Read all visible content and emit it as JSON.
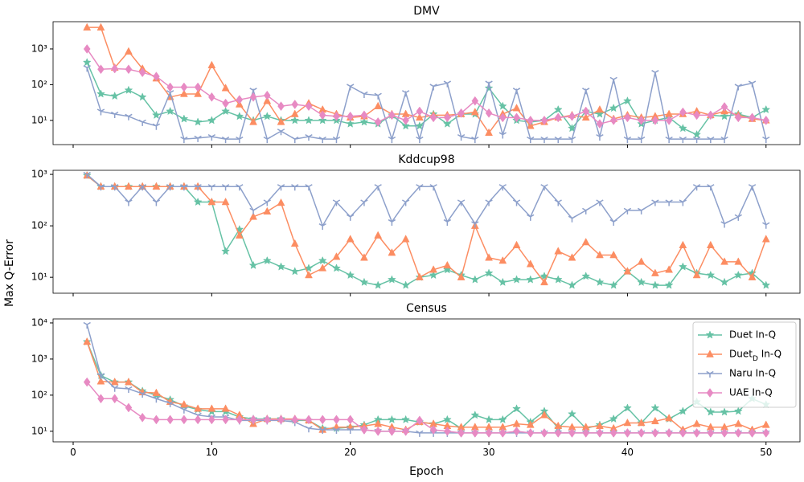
{
  "ylabel": "Max Q-Error",
  "chart_data": [
    {
      "type": "line",
      "title": "DMV",
      "log_y": true,
      "x": [
        1,
        2,
        3,
        4,
        5,
        6,
        7,
        8,
        9,
        10,
        11,
        12,
        13,
        14,
        15,
        16,
        17,
        18,
        19,
        20,
        21,
        22,
        23,
        24,
        25,
        26,
        27,
        28,
        29,
        30,
        31,
        32,
        33,
        34,
        35,
        36,
        37,
        38,
        39,
        40,
        41,
        42,
        43,
        44,
        45,
        46,
        47,
        48,
        49,
        50
      ],
      "xlim": [
        -1.45,
        52.45
      ],
      "xticks": [
        0,
        10,
        20,
        30,
        40,
        50
      ],
      "ylim": [
        2.1,
        5800
      ],
      "yticks": [
        {
          "value": 10,
          "label": "10¹"
        },
        {
          "value": 100,
          "label": "10²"
        },
        {
          "value": 1000,
          "label": "10³"
        }
      ],
      "series": [
        {
          "name": "Duet In-Q",
          "color": "#66c2a5",
          "marker": "star",
          "values": [
            420,
            55,
            48,
            70,
            45,
            14,
            18,
            11,
            9,
            10,
            18,
            13,
            10,
            13,
            10,
            10,
            10,
            10,
            10,
            8,
            9,
            8,
            14,
            7,
            7,
            15,
            8,
            15,
            15,
            80,
            25,
            10,
            9,
            10,
            20,
            6,
            18,
            15,
            22,
            35,
            8,
            10,
            12,
            6,
            4,
            14,
            13,
            15,
            12,
            20
          ]
        },
        {
          "name": "Duet_D In-Q",
          "color": "#fc8d62",
          "marker": "triangle",
          "values": [
            4000,
            4000,
            300,
            850,
            280,
            150,
            45,
            55,
            55,
            350,
            80,
            28,
            9,
            35,
            9,
            15,
            30,
            20,
            15,
            12,
            13,
            25,
            15,
            15,
            12,
            14,
            14,
            15,
            17,
            4.5,
            15,
            22,
            7,
            9,
            12,
            14,
            12,
            20,
            11,
            14,
            12,
            13,
            15,
            15,
            18,
            14,
            18,
            14,
            11,
            10
          ]
        },
        {
          "name": "Naru In-Q",
          "color": "#8da0cb",
          "marker": "tri",
          "values": [
            300,
            18,
            15,
            13,
            9,
            7,
            60,
            3,
            3.2,
            3.5,
            3,
            3,
            70,
            3,
            5,
            3,
            3.5,
            3,
            3,
            90,
            55,
            50,
            3,
            60,
            3,
            90,
            110,
            3.5,
            3,
            110,
            4,
            70,
            3,
            3,
            3,
            3,
            70,
            3.5,
            140,
            3,
            3,
            220,
            3,
            3,
            3,
            3,
            3,
            90,
            110,
            3
          ]
        },
        {
          "name": "UAE In-Q",
          "color": "#e78ac3",
          "marker": "diamond",
          "values": [
            1000,
            270,
            280,
            270,
            220,
            170,
            85,
            85,
            85,
            45,
            30,
            38,
            45,
            50,
            25,
            28,
            25,
            14,
            13,
            13,
            14,
            9,
            14,
            10,
            18,
            12,
            12,
            16,
            35,
            16,
            12,
            12,
            10,
            10,
            12,
            13,
            18,
            8,
            10,
            12,
            10,
            10,
            10,
            17,
            14,
            14,
            24,
            12,
            12,
            10
          ]
        }
      ]
    },
    {
      "type": "line",
      "title": "Kddcup98",
      "log_y": true,
      "x": [
        1,
        2,
        3,
        4,
        5,
        6,
        7,
        8,
        9,
        10,
        11,
        12,
        13,
        14,
        15,
        16,
        17,
        18,
        19,
        20,
        21,
        22,
        23,
        24,
        25,
        26,
        27,
        28,
        29,
        30,
        31,
        32,
        33,
        34,
        35,
        36,
        37,
        38,
        39,
        40,
        41,
        42,
        43,
        44,
        45,
        46,
        47,
        48,
        49,
        50
      ],
      "xlim": [
        -1.45,
        52.45
      ],
      "xticks": [
        0,
        10,
        20,
        30,
        40,
        50
      ],
      "ylim": [
        4.9,
        1200
      ],
      "yticks": [
        {
          "value": 10,
          "label": "10¹"
        },
        {
          "value": 100,
          "label": "10²"
        },
        {
          "value": 1000,
          "label": "10³"
        }
      ],
      "series": [
        {
          "name": "Duet In-Q",
          "color": "#66c2a5",
          "marker": "star",
          "values": [
            950,
            580,
            580,
            580,
            580,
            580,
            580,
            580,
            290,
            290,
            32,
            85,
            17,
            21,
            16,
            13,
            15,
            21,
            15,
            11,
            8,
            7,
            9,
            7,
            10,
            11,
            14,
            11,
            9,
            12,
            8,
            9,
            9,
            10.5,
            9,
            7,
            10.5,
            8,
            7,
            13,
            8,
            7,
            7,
            16,
            12,
            11,
            8,
            11,
            12,
            7
          ]
        },
        {
          "name": "Duet_D In-Q",
          "color": "#fc8d62",
          "marker": "triangle",
          "values": [
            950,
            580,
            580,
            580,
            580,
            580,
            580,
            580,
            580,
            290,
            290,
            65,
            150,
            190,
            280,
            45,
            11,
            15,
            25,
            55,
            24,
            65,
            30,
            55,
            10,
            14,
            17,
            10,
            100,
            24,
            21,
            42,
            18,
            8,
            32,
            24,
            48,
            27,
            27,
            13,
            20,
            12,
            14,
            42,
            11,
            42,
            20,
            20,
            10,
            55
          ]
        },
        {
          "name": "Naru In-Q",
          "color": "#8da0cb",
          "marker": "tri",
          "values": [
            1000,
            580,
            580,
            290,
            580,
            290,
            580,
            580,
            580,
            580,
            580,
            580,
            200,
            290,
            580,
            580,
            580,
            100,
            290,
            150,
            290,
            580,
            120,
            290,
            580,
            580,
            120,
            290,
            110,
            290,
            580,
            290,
            150,
            580,
            290,
            140,
            200,
            290,
            120,
            200,
            200,
            290,
            290,
            290,
            580,
            580,
            110,
            150,
            580,
            105
          ]
        }
      ]
    },
    {
      "type": "line",
      "title": "Census",
      "log_y": true,
      "xlabel": "Epoch",
      "legend": "upper right",
      "x": [
        1,
        2,
        3,
        4,
        5,
        6,
        7,
        8,
        9,
        10,
        11,
        12,
        13,
        14,
        15,
        16,
        17,
        18,
        19,
        20,
        21,
        22,
        23,
        24,
        25,
        26,
        27,
        28,
        29,
        30,
        31,
        32,
        33,
        34,
        35,
        36,
        37,
        38,
        39,
        40,
        41,
        42,
        43,
        44,
        45,
        46,
        47,
        48,
        49,
        50
      ],
      "xlim": [
        -1.45,
        52.45
      ],
      "xticks": [
        0,
        10,
        20,
        30,
        40,
        50
      ],
      "ylim": [
        5.1,
        12900
      ],
      "yticks": [
        {
          "value": 10,
          "label": "10¹"
        },
        {
          "value": 100,
          "label": "10²"
        },
        {
          "value": 1000,
          "label": "10³"
        },
        {
          "value": 10000,
          "label": "10⁴"
        }
      ],
      "series": [
        {
          "name": "Duet In-Q",
          "color": "#66c2a5",
          "marker": "star",
          "values": [
            3000,
            350,
            230,
            230,
            130,
            100,
            75,
            50,
            40,
            35,
            35,
            25,
            22,
            22,
            22,
            20,
            20,
            12,
            12,
            13,
            15,
            21,
            21,
            21,
            18,
            16,
            21,
            12,
            28,
            21,
            21,
            42,
            18,
            36,
            12,
            30,
            12,
            15,
            22,
            44,
            17,
            44,
            22,
            36,
            65,
            34,
            34,
            36,
            80,
            55
          ]
        },
        {
          "name": "Duet_D In-Q",
          "color": "#fc8d62",
          "marker": "triangle",
          "values": [
            3000,
            240,
            230,
            230,
            120,
            115,
            65,
            55,
            42,
            42,
            42,
            28,
            16,
            22,
            22,
            22,
            20,
            11,
            13,
            13,
            14,
            16,
            13,
            11,
            18,
            16,
            14,
            13,
            13,
            13,
            13,
            16,
            15,
            28,
            14,
            13,
            13,
            14,
            12,
            17,
            17,
            19,
            23,
            11,
            16,
            13,
            13,
            16,
            11,
            15
          ]
        },
        {
          "name": "Naru In-Q",
          "color": "#8da0cb",
          "marker": "tri",
          "values": [
            9000,
            350,
            160,
            150,
            110,
            80,
            60,
            40,
            28,
            25,
            25,
            20,
            20,
            20,
            20,
            18,
            12,
            11,
            11,
            11,
            11,
            10,
            10,
            10,
            9,
            9,
            9,
            9,
            9,
            9,
            9,
            9,
            9,
            9,
            9,
            9,
            9,
            9,
            9,
            9,
            9,
            9,
            9,
            9,
            9,
            9,
            9,
            9,
            9,
            9
          ]
        },
        {
          "name": "UAE In-Q",
          "color": "#e78ac3",
          "marker": "diamond",
          "values": [
            230,
            80,
            80,
            45,
            24,
            21,
            21,
            21,
            21,
            21,
            21,
            21,
            21,
            21,
            21,
            21,
            21,
            21,
            21,
            21,
            11,
            10,
            10,
            10,
            20,
            11,
            10,
            9,
            9,
            9,
            9,
            10,
            9,
            9,
            9,
            9,
            9,
            9,
            9,
            9,
            9,
            9,
            9,
            9,
            9,
            9,
            9,
            9,
            9,
            9
          ]
        }
      ]
    }
  ]
}
